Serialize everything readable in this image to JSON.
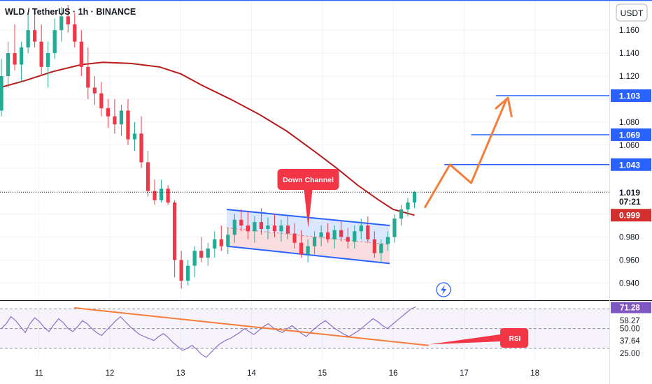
{
  "chart_data": {
    "type": "candlestick",
    "title": "WLD / TetherUS · 1h · BINANCE",
    "currency_button": "USDT",
    "price_axis": {
      "range": [
        0.925,
        1.185
      ],
      "ticks": [
        "1.160",
        "1.140",
        "1.120",
        "1.080",
        "1.060",
        "0.980",
        "0.960",
        "0.940"
      ],
      "tick_values": [
        1.16,
        1.14,
        1.12,
        1.08,
        1.06,
        0.98,
        0.96,
        0.94
      ]
    },
    "x_axis": {
      "range": [
        10.45,
        19.05
      ],
      "ticks": [
        "11",
        "12",
        "13",
        "14",
        "15",
        "16",
        "17",
        "18"
      ],
      "tick_values": [
        11,
        12,
        13,
        14,
        15,
        16,
        17,
        18
      ]
    },
    "price_badges": [
      {
        "label": "1.103",
        "value": 1.103,
        "color": "#2962ff"
      },
      {
        "label": "1.069",
        "value": 1.069,
        "color": "#2962ff"
      },
      {
        "label": "1.043",
        "value": 1.043,
        "color": "#2962ff"
      },
      {
        "label": "1.019",
        "value": 1.019,
        "color": "#131722"
      },
      {
        "label": "07:21",
        "value": 1.011,
        "color": "#131722"
      },
      {
        "label": "0.999",
        "value": 0.999,
        "color": "#d32f2f"
      }
    ],
    "current_price": 1.019,
    "countdown": "07:21",
    "moving_average": {
      "color": "#b71c1c",
      "points": [
        [
          10.45,
          1.11
        ],
        [
          10.8,
          1.116
        ],
        [
          11.2,
          1.124
        ],
        [
          11.6,
          1.13
        ],
        [
          11.9,
          1.132
        ],
        [
          12.3,
          1.131
        ],
        [
          12.7,
          1.128
        ],
        [
          13.0,
          1.122
        ],
        [
          13.3,
          1.112
        ],
        [
          13.7,
          1.1
        ],
        [
          14.1,
          1.087
        ],
        [
          14.5,
          1.072
        ],
        [
          14.9,
          1.054
        ],
        [
          15.2,
          1.04
        ],
        [
          15.5,
          1.025
        ],
        [
          15.8,
          1.012
        ],
        [
          16.0,
          1.004
        ],
        [
          16.3,
          0.999
        ]
      ]
    },
    "target_levels": [
      {
        "value": 1.103,
        "from": 17.45,
        "to": 19.05
      },
      {
        "value": 1.069,
        "from": 17.1,
        "to": 19.05
      },
      {
        "value": 1.043,
        "from": 16.72,
        "to": 19.05
      }
    ],
    "projection_path": [
      [
        16.45,
        1.006
      ],
      [
        16.8,
        1.043
      ],
      [
        17.1,
        1.027
      ],
      [
        17.6,
        1.1
      ]
    ],
    "projection_arrowhead": [
      [
        17.45,
        1.092
      ],
      [
        17.62,
        1.101
      ],
      [
        17.67,
        1.085
      ]
    ],
    "channel": {
      "label": "Down Channel",
      "upper": [
        [
          13.65,
          1.004
        ],
        [
          15.95,
          0.99
        ]
      ],
      "lower": [
        [
          13.65,
          0.972
        ],
        [
          15.95,
          0.957
        ]
      ],
      "callout_anchor": [
        14.8,
        0.988
      ]
    },
    "candles_ohlc": [
      [
        1.09,
        1.135,
        1.085,
        1.12
      ],
      [
        1.12,
        1.15,
        1.11,
        1.14
      ],
      [
        1.14,
        1.165,
        1.125,
        1.13
      ],
      [
        1.13,
        1.15,
        1.115,
        1.145
      ],
      [
        1.145,
        1.175,
        1.14,
        1.16
      ],
      [
        1.16,
        1.178,
        1.145,
        1.15
      ],
      [
        1.15,
        1.165,
        1.12,
        1.128
      ],
      [
        1.128,
        1.15,
        1.11,
        1.14
      ],
      [
        1.14,
        1.17,
        1.135,
        1.16
      ],
      [
        1.16,
        1.18,
        1.15,
        1.172
      ],
      [
        1.172,
        1.182,
        1.158,
        1.165
      ],
      [
        1.165,
        1.175,
        1.145,
        1.15
      ],
      [
        1.15,
        1.16,
        1.12,
        1.128
      ],
      [
        1.128,
        1.145,
        1.1,
        1.11
      ],
      [
        1.11,
        1.12,
        1.095,
        1.105
      ],
      [
        1.105,
        1.115,
        1.085,
        1.092
      ],
      [
        1.092,
        1.1,
        1.075,
        1.085
      ],
      [
        1.085,
        1.1,
        1.07,
        1.078
      ],
      [
        1.078,
        1.095,
        1.068,
        1.09
      ],
      [
        1.09,
        1.1,
        1.06,
        1.065
      ],
      [
        1.065,
        1.08,
        1.055,
        1.07
      ],
      [
        1.07,
        1.085,
        1.04,
        1.045
      ],
      [
        1.045,
        1.055,
        1.015,
        1.02
      ],
      [
        1.02,
        1.03,
        1.008,
        1.012
      ],
      [
        1.012,
        1.03,
        1.01,
        1.022
      ],
      [
        1.022,
        1.025,
        1.008,
        1.01
      ],
      [
        1.01,
        1.012,
        0.945,
        0.96
      ],
      [
        0.96,
        0.968,
        0.935,
        0.942
      ],
      [
        0.942,
        0.96,
        0.938,
        0.955
      ],
      [
        0.955,
        0.972,
        0.945,
        0.968
      ],
      [
        0.968,
        0.98,
        0.958,
        0.962
      ],
      [
        0.962,
        0.975,
        0.955,
        0.97
      ],
      [
        0.97,
        0.985,
        0.962,
        0.978
      ],
      [
        0.978,
        0.99,
        0.968,
        0.972
      ],
      [
        0.972,
        0.988,
        0.965,
        0.982
      ],
      [
        0.982,
        1.0,
        0.975,
        0.995
      ],
      [
        0.995,
        1.004,
        0.985,
        0.99
      ],
      [
        0.99,
        1.002,
        0.978,
        0.985
      ],
      [
        0.985,
        0.998,
        0.975,
        0.993
      ],
      [
        0.993,
        1.005,
        0.982,
        0.987
      ],
      [
        0.987,
        0.997,
        0.978,
        0.99
      ],
      [
        0.99,
        1.0,
        0.98,
        0.985
      ],
      [
        0.985,
        0.995,
        0.976,
        0.99
      ],
      [
        0.99,
        0.998,
        0.978,
        0.983
      ],
      [
        0.983,
        0.992,
        0.97,
        0.975
      ],
      [
        0.975,
        0.986,
        0.962,
        0.965
      ],
      [
        0.965,
        0.978,
        0.958,
        0.972
      ],
      [
        0.972,
        0.985,
        0.965,
        0.98
      ],
      [
        0.98,
        0.99,
        0.972,
        0.984
      ],
      [
        0.984,
        0.992,
        0.975,
        0.978
      ],
      [
        0.978,
        0.99,
        0.97,
        0.986
      ],
      [
        0.986,
        0.994,
        0.976,
        0.98
      ],
      [
        0.98,
        0.988,
        0.97,
        0.976
      ],
      [
        0.976,
        0.99,
        0.97,
        0.985
      ],
      [
        0.985,
        0.996,
        0.978,
        0.99
      ],
      [
        0.99,
        0.998,
        0.975,
        0.978
      ],
      [
        0.978,
        0.985,
        0.962,
        0.966
      ],
      [
        0.966,
        0.978,
        0.958,
        0.974
      ],
      [
        0.974,
        0.985,
        0.968,
        0.98
      ],
      [
        0.98,
        1.0,
        0.975,
        0.996
      ],
      [
        0.996,
        1.008,
        0.99,
        1.004
      ],
      [
        1.004,
        1.014,
        0.998,
        1.01
      ],
      [
        1.01,
        1.02,
        1.005,
        1.019
      ]
    ],
    "rsi": {
      "label": "RSI",
      "range": [
        18,
        78
      ],
      "ticks": [
        "58.27",
        "50.00",
        "37.64",
        "25.00"
      ],
      "tick_values": [
        58.27,
        50.0,
        37.64,
        25.0
      ],
      "current": "71.28",
      "current_value": 71.28,
      "bands": [
        70,
        50,
        30
      ],
      "series": [
        50,
        55,
        62,
        58,
        52,
        46,
        55,
        61,
        57,
        51,
        47,
        54,
        60,
        56,
        50,
        47,
        52,
        58,
        55,
        50,
        46,
        43,
        48,
        53,
        58,
        62,
        57,
        52,
        48,
        44,
        42,
        40,
        38,
        42,
        45,
        41,
        36,
        32,
        28,
        30,
        33,
        29,
        24,
        21,
        26,
        31,
        35,
        38,
        40,
        43,
        46,
        50,
        47,
        44,
        48,
        52,
        55,
        51,
        48,
        46,
        50,
        53,
        49,
        45,
        42,
        47,
        51,
        55,
        58,
        54,
        50,
        47,
        44,
        42,
        45,
        48,
        52,
        56,
        60,
        57,
        53,
        50,
        54,
        58,
        62,
        66,
        70,
        72
      ],
      "trendline": [
        [
          11.5,
          71.0
        ],
        [
          16.5,
          33.0
        ]
      ],
      "callout_anchor": [
        16.5,
        34.0
      ]
    }
  }
}
